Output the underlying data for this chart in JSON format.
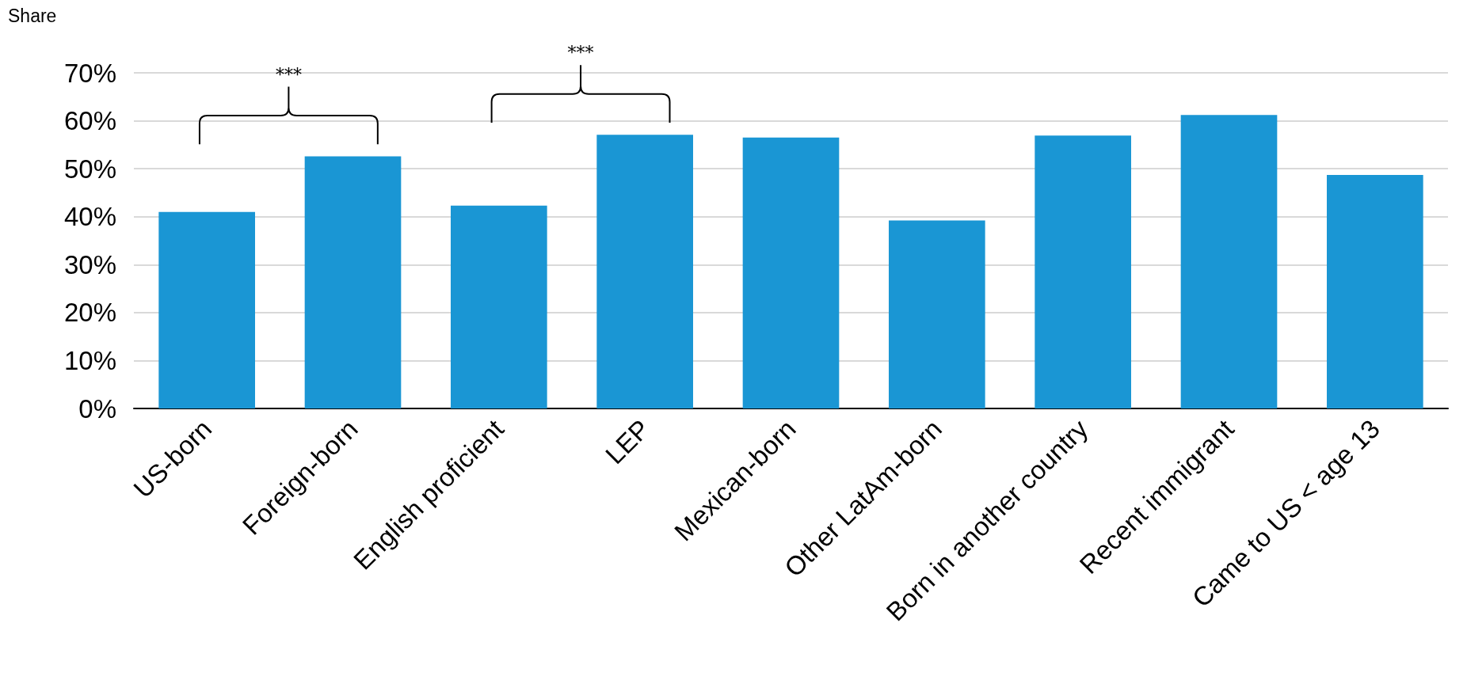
{
  "chart_data": {
    "type": "bar",
    "ylabel": "Share",
    "categories": [
      "US-born",
      "Foreign-born",
      "English proficient",
      "LEP",
      "Mexican-born",
      "Other LatAm-born",
      "Born in another country",
      "Recent immigrant",
      "Came to US < age 13"
    ],
    "values": [
      41,
      52.6,
      42.3,
      57.1,
      56.5,
      39.2,
      56.9,
      61.2,
      48.7
    ],
    "color": "#1a96d4",
    "ylim": [
      0,
      70
    ],
    "yticks": [
      {
        "value": 0,
        "label": "0%"
      },
      {
        "value": 10,
        "label": "10%"
      },
      {
        "value": 20,
        "label": "20%"
      },
      {
        "value": 30,
        "label": "30%"
      },
      {
        "value": 40,
        "label": "40%"
      },
      {
        "value": 50,
        "label": "50%"
      },
      {
        "value": 60,
        "label": "60%"
      },
      {
        "value": 70,
        "label": "70%"
      }
    ],
    "grid": "y",
    "annotations": [
      "***",
      "***"
    ]
  }
}
